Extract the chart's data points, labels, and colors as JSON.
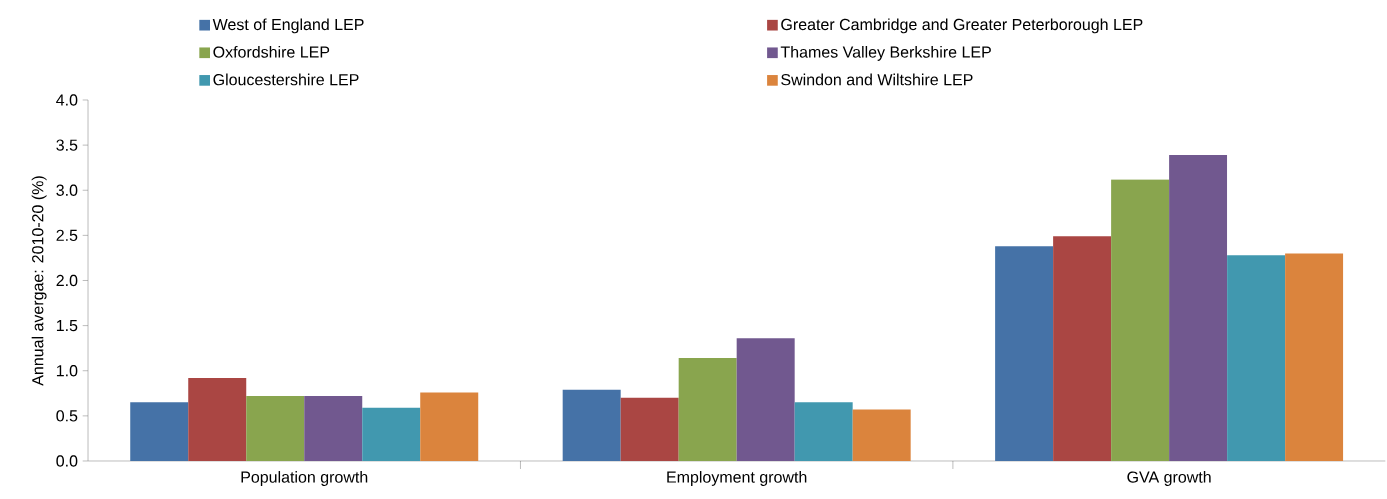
{
  "chart_data": {
    "type": "bar",
    "ylabel": "Annual avergae: 2010-20 (%)",
    "categories": [
      "Population growth",
      "Employment growth",
      "GVA growth"
    ],
    "series": [
      {
        "name": "West of England LEP",
        "color": "#4572a7",
        "values": [
          0.65,
          0.79,
          2.38
        ]
      },
      {
        "name": "Greater Cambridge and Greater Peterborough LEP",
        "color": "#aa4643",
        "values": [
          0.92,
          0.7,
          2.49
        ]
      },
      {
        "name": "Oxfordshire LEP",
        "color": "#89a54e",
        "values": [
          0.72,
          1.14,
          3.12
        ]
      },
      {
        "name": "Thames Valley Berkshire LEP",
        "color": "#71588f",
        "values": [
          0.72,
          1.36,
          3.39
        ]
      },
      {
        "name": "Gloucestershire LEP",
        "color": "#4198af",
        "values": [
          0.59,
          0.65,
          2.28
        ]
      },
      {
        "name": "Swindon and Wiltshire LEP",
        "color": "#db843d",
        "values": [
          0.76,
          0.57,
          2.3
        ]
      }
    ],
    "ylim": [
      0,
      4
    ],
    "yticks": [
      {
        "value": 0,
        "label": "0.0"
      },
      {
        "value": 0.5,
        "label": "0.5"
      },
      {
        "value": 1,
        "label": "1.0"
      },
      {
        "value": 1.5,
        "label": "1.5"
      },
      {
        "value": 2,
        "label": "2.0"
      },
      {
        "value": 2.5,
        "label": "2.5"
      },
      {
        "value": 3,
        "label": "3.0"
      },
      {
        "value": 3.5,
        "label": "3.5"
      },
      {
        "value": 4,
        "label": "4.0"
      }
    ],
    "legend": "top"
  }
}
